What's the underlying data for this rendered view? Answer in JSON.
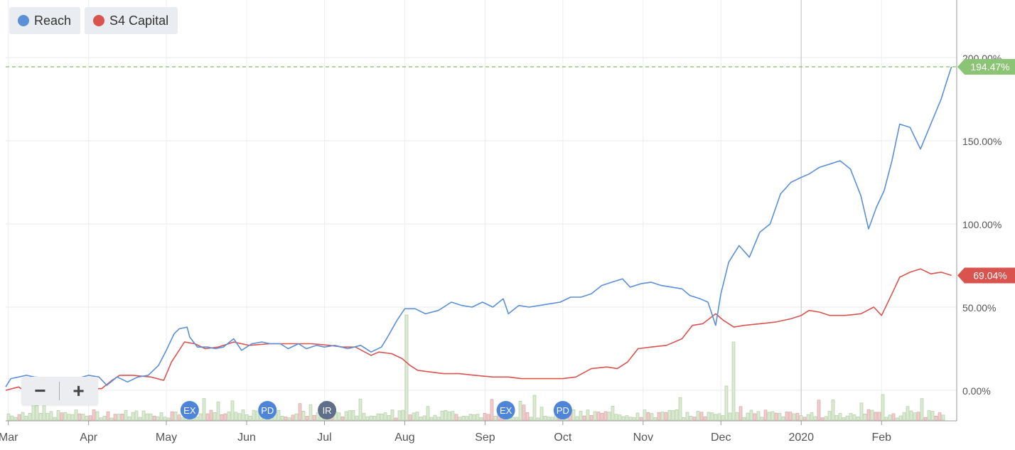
{
  "legend": {
    "items": [
      {
        "label": "Reach",
        "color": "#5b8fd6"
      },
      {
        "label": "S4 Capital",
        "color": "#d9534f"
      }
    ]
  },
  "zoom": {
    "minus_label": "−",
    "plus_label": "+"
  },
  "chart_data": {
    "type": "line",
    "y_ticks": [
      "0.00%",
      "50.00%",
      "100.00%",
      "150.00%",
      "200.00%"
    ],
    "ylim": [
      -18,
      232
    ],
    "x_ticks": [
      "Mar",
      "Apr",
      "May",
      "Jun",
      "Jul",
      "Aug",
      "Sep",
      "Oct",
      "Nov",
      "Dec",
      "2020",
      "Feb"
    ],
    "xlim": [
      "2019-02-28",
      "2020-03-01"
    ],
    "grid": true,
    "legend_position": "top-left",
    "last_value_labels": [
      {
        "series": "Reach",
        "text": "194.47%",
        "value": 194.47,
        "color": "#8bc474"
      },
      {
        "series": "S4 Capital",
        "text": "69.04%",
        "value": 69.04,
        "color": "#d9534f"
      }
    ],
    "reference_line": {
      "value": 194.47,
      "color": "#8bc474",
      "style": "dashed"
    },
    "series": [
      {
        "name": "Reach",
        "color": "#5b8fd6",
        "points": [
          [
            "2019-02-28",
            2
          ],
          [
            "2019-03-02",
            7
          ],
          [
            "2019-03-05",
            8
          ],
          [
            "2019-03-08",
            9
          ],
          [
            "2019-03-11",
            8
          ],
          [
            "2019-03-18",
            7
          ],
          [
            "2019-03-25",
            6
          ],
          [
            "2019-04-01",
            9
          ],
          [
            "2019-04-05",
            8
          ],
          [
            "2019-04-08",
            3
          ],
          [
            "2019-04-12",
            8
          ],
          [
            "2019-04-16",
            5
          ],
          [
            "2019-04-20",
            8
          ],
          [
            "2019-04-24",
            9
          ],
          [
            "2019-04-28",
            15
          ],
          [
            "2019-05-01",
            24
          ],
          [
            "2019-05-04",
            34
          ],
          [
            "2019-05-06",
            37
          ],
          [
            "2019-05-09",
            38
          ],
          [
            "2019-05-10",
            32
          ],
          [
            "2019-05-13",
            26
          ],
          [
            "2019-05-17",
            26
          ],
          [
            "2019-05-20",
            25
          ],
          [
            "2019-05-23",
            26
          ],
          [
            "2019-05-27",
            31
          ],
          [
            "2019-05-30",
            24
          ],
          [
            "2019-06-03",
            28
          ],
          [
            "2019-06-07",
            29
          ],
          [
            "2019-06-10",
            28
          ],
          [
            "2019-06-14",
            28
          ],
          [
            "2019-06-17",
            25
          ],
          [
            "2019-06-21",
            28
          ],
          [
            "2019-06-24",
            25
          ],
          [
            "2019-06-28",
            27
          ],
          [
            "2019-07-01",
            26
          ],
          [
            "2019-07-05",
            27
          ],
          [
            "2019-07-10",
            25
          ],
          [
            "2019-07-15",
            27
          ],
          [
            "2019-07-19",
            23
          ],
          [
            "2019-07-23",
            26
          ],
          [
            "2019-07-25",
            31
          ],
          [
            "2019-07-29",
            42
          ],
          [
            "2019-08-01",
            49
          ],
          [
            "2019-08-05",
            49
          ],
          [
            "2019-08-09",
            46
          ],
          [
            "2019-08-14",
            48
          ],
          [
            "2019-08-19",
            53
          ],
          [
            "2019-08-23",
            51
          ],
          [
            "2019-08-27",
            50
          ],
          [
            "2019-08-31",
            53
          ],
          [
            "2019-09-04",
            50
          ],
          [
            "2019-09-08",
            55
          ],
          [
            "2019-09-10",
            46
          ],
          [
            "2019-09-14",
            51
          ],
          [
            "2019-09-18",
            50
          ],
          [
            "2019-09-22",
            51
          ],
          [
            "2019-09-26",
            52
          ],
          [
            "2019-09-30",
            53
          ],
          [
            "2019-10-04",
            56
          ],
          [
            "2019-10-08",
            56
          ],
          [
            "2019-10-12",
            58
          ],
          [
            "2019-10-16",
            63
          ],
          [
            "2019-10-20",
            65
          ],
          [
            "2019-10-24",
            67
          ],
          [
            "2019-10-27",
            62
          ],
          [
            "2019-10-31",
            64
          ],
          [
            "2019-11-04",
            65
          ],
          [
            "2019-11-08",
            63
          ],
          [
            "2019-11-12",
            62
          ],
          [
            "2019-11-16",
            61
          ],
          [
            "2019-11-19",
            57
          ],
          [
            "2019-11-23",
            55
          ],
          [
            "2019-11-26",
            53
          ],
          [
            "2019-11-29",
            39
          ],
          [
            "2019-12-01",
            58
          ],
          [
            "2019-12-04",
            77
          ],
          [
            "2019-12-08",
            87
          ],
          [
            "2019-12-12",
            80
          ],
          [
            "2019-12-16",
            95
          ],
          [
            "2019-12-20",
            100
          ],
          [
            "2019-12-24",
            118
          ],
          [
            "2019-12-28",
            125
          ],
          [
            "2020-01-01",
            128
          ],
          [
            "2020-01-04",
            130
          ],
          [
            "2020-01-08",
            134
          ],
          [
            "2020-01-12",
            136
          ],
          [
            "2020-01-16",
            138
          ],
          [
            "2020-01-20",
            133
          ],
          [
            "2020-01-24",
            117
          ],
          [
            "2020-01-27",
            97
          ],
          [
            "2020-01-30",
            110
          ],
          [
            "2020-02-02",
            120
          ],
          [
            "2020-02-05",
            138
          ],
          [
            "2020-02-08",
            160
          ],
          [
            "2020-02-12",
            158
          ],
          [
            "2020-02-16",
            145
          ],
          [
            "2020-02-20",
            160
          ],
          [
            "2020-02-24",
            175
          ],
          [
            "2020-02-26",
            185
          ],
          [
            "2020-02-28",
            194.47
          ]
        ]
      },
      {
        "name": "S4 Capital",
        "color": "#d9534f",
        "points": [
          [
            "2019-02-28",
            0
          ],
          [
            "2019-03-05",
            2
          ],
          [
            "2019-03-08",
            -1
          ],
          [
            "2019-03-12",
            1
          ],
          [
            "2019-03-18",
            1
          ],
          [
            "2019-03-25",
            1
          ],
          [
            "2019-04-01",
            1
          ],
          [
            "2019-04-06",
            1
          ],
          [
            "2019-04-10",
            6
          ],
          [
            "2019-04-13",
            9
          ],
          [
            "2019-04-18",
            9
          ],
          [
            "2019-04-25",
            8
          ],
          [
            "2019-04-30",
            6
          ],
          [
            "2019-05-03",
            17
          ],
          [
            "2019-05-08",
            29
          ],
          [
            "2019-05-12",
            28
          ],
          [
            "2019-05-16",
            25
          ],
          [
            "2019-05-21",
            26
          ],
          [
            "2019-05-27",
            29
          ],
          [
            "2019-06-02",
            27
          ],
          [
            "2019-06-10",
            28
          ],
          [
            "2019-06-18",
            28
          ],
          [
            "2019-06-26",
            28
          ],
          [
            "2019-07-03",
            27
          ],
          [
            "2019-07-08",
            26
          ],
          [
            "2019-07-13",
            26
          ],
          [
            "2019-07-19",
            21
          ],
          [
            "2019-07-22",
            23
          ],
          [
            "2019-07-27",
            22
          ],
          [
            "2019-07-31",
            19
          ],
          [
            "2019-08-03",
            15
          ],
          [
            "2019-08-06",
            12
          ],
          [
            "2019-08-11",
            11
          ],
          [
            "2019-08-16",
            10
          ],
          [
            "2019-08-22",
            10
          ],
          [
            "2019-08-28",
            9
          ],
          [
            "2019-09-04",
            8
          ],
          [
            "2019-09-10",
            8
          ],
          [
            "2019-09-15",
            7
          ],
          [
            "2019-09-20",
            7
          ],
          [
            "2019-09-26",
            7
          ],
          [
            "2019-10-01",
            7
          ],
          [
            "2019-10-06",
            8
          ],
          [
            "2019-10-12",
            13
          ],
          [
            "2019-10-18",
            14
          ],
          [
            "2019-10-22",
            13
          ],
          [
            "2019-10-26",
            17
          ],
          [
            "2019-10-30",
            25
          ],
          [
            "2019-11-04",
            26
          ],
          [
            "2019-11-10",
            27
          ],
          [
            "2019-11-16",
            31
          ],
          [
            "2019-11-20",
            39
          ],
          [
            "2019-11-24",
            40
          ],
          [
            "2019-11-29",
            46
          ],
          [
            "2019-12-02",
            42
          ],
          [
            "2019-12-06",
            38
          ],
          [
            "2019-12-10",
            39
          ],
          [
            "2019-12-16",
            40
          ],
          [
            "2019-12-22",
            41
          ],
          [
            "2019-12-28",
            43
          ],
          [
            "2020-01-01",
            45
          ],
          [
            "2020-01-04",
            48
          ],
          [
            "2020-01-08",
            47
          ],
          [
            "2020-01-12",
            45
          ],
          [
            "2020-01-18",
            45
          ],
          [
            "2020-01-24",
            46
          ],
          [
            "2020-01-29",
            50
          ],
          [
            "2020-02-01",
            45
          ],
          [
            "2020-02-05",
            58
          ],
          [
            "2020-02-08",
            68
          ],
          [
            "2020-02-12",
            71
          ],
          [
            "2020-02-16",
            73
          ],
          [
            "2020-02-20",
            70
          ],
          [
            "2020-02-24",
            71
          ],
          [
            "2020-02-28",
            69.04
          ]
        ]
      }
    ],
    "events": [
      {
        "label": "EX",
        "date": "2019-05-10",
        "color": "#4f85d9"
      },
      {
        "label": "PD",
        "date": "2019-06-09",
        "color": "#4f85d9"
      },
      {
        "label": "IR",
        "date": "2019-07-02",
        "color": "#5f6f8a"
      },
      {
        "label": "EX",
        "date": "2019-09-09",
        "color": "#4f85d9"
      },
      {
        "label": "PD",
        "date": "2019-10-01",
        "color": "#4f85d9"
      }
    ]
  }
}
